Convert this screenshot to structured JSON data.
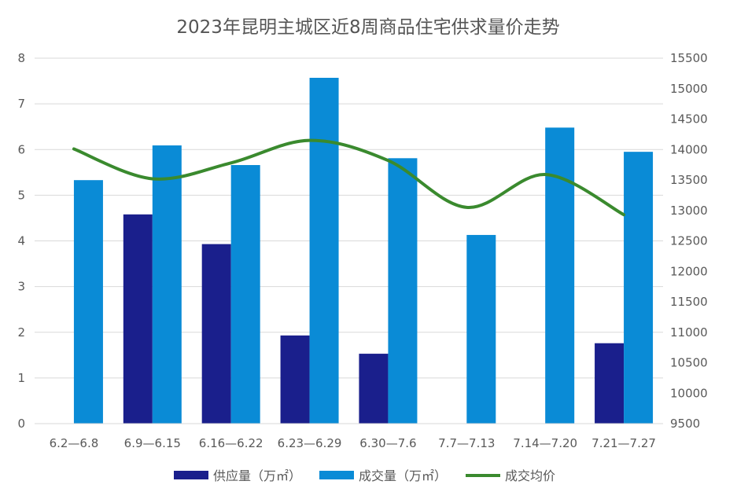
{
  "chart_data": {
    "type": "bar",
    "title": "2023年昆明主城区近8周商品住宅供求量价走势",
    "categories": [
      "6.2—6.8",
      "6.9—6.15",
      "6.16—6.22",
      "6.23—6.29",
      "6.30—7.6",
      "7.7—7.13",
      "7.14—7.20",
      "7.21—7.27"
    ],
    "series": [
      {
        "name": "供应量（万㎡）",
        "type": "bar",
        "axis": "left",
        "color": "#1a1f8c",
        "values": [
          0,
          4.58,
          3.93,
          1.93,
          1.53,
          0,
          0,
          1.76
        ]
      },
      {
        "name": "成交量（万㎡）",
        "type": "bar",
        "axis": "left",
        "color": "#0a8bd6",
        "values": [
          5.33,
          6.09,
          5.66,
          7.57,
          5.81,
          4.13,
          6.48,
          5.95
        ]
      },
      {
        "name": "成交均价",
        "type": "line",
        "axis": "right",
        "color": "#3a8a2e",
        "smooth": true,
        "values": [
          14010,
          13520,
          13780,
          14150,
          13820,
          13050,
          13590,
          12930
        ]
      }
    ],
    "y_left": {
      "min": 0,
      "max": 8,
      "ticks": [
        "0",
        "1",
        "2",
        "3",
        "4",
        "5",
        "6",
        "7",
        "8"
      ]
    },
    "y_right": {
      "min": 9500,
      "max": 15500,
      "ticks": [
        "9500",
        "10000",
        "10500",
        "11000",
        "11500",
        "12000",
        "12500",
        "13000",
        "13500",
        "14000",
        "14500",
        "15000",
        "15500"
      ]
    },
    "grid": true,
    "legend": "bottom"
  }
}
